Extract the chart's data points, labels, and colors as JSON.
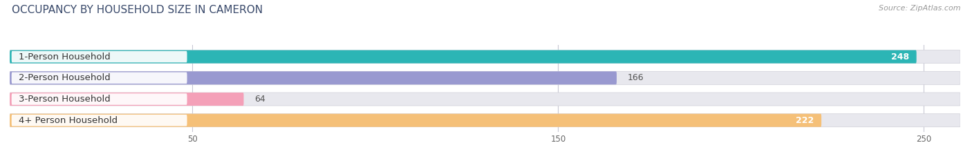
{
  "title": "OCCUPANCY BY HOUSEHOLD SIZE IN CAMERON",
  "source": "Source: ZipAtlas.com",
  "categories": [
    "1-Person Household",
    "2-Person Household",
    "3-Person Household",
    "4+ Person Household"
  ],
  "values": [
    248,
    166,
    64,
    222
  ],
  "bar_colors": [
    "#2cb5b5",
    "#9999d0",
    "#f4a0b8",
    "#f5c078"
  ],
  "bar_bg_color": "#e8e8ee",
  "max_value": 260,
  "xlim_max": 260,
  "xticks": [
    50,
    150,
    250
  ],
  "title_fontsize": 11,
  "label_fontsize": 9.5,
  "value_fontsize": 9,
  "source_fontsize": 8,
  "title_color": "#3a4a6b",
  "label_color": "#333333",
  "value_color_inside": "#ffffff",
  "value_color_outside": "#555555",
  "background_color": "#ffffff",
  "inside_threshold": 200
}
